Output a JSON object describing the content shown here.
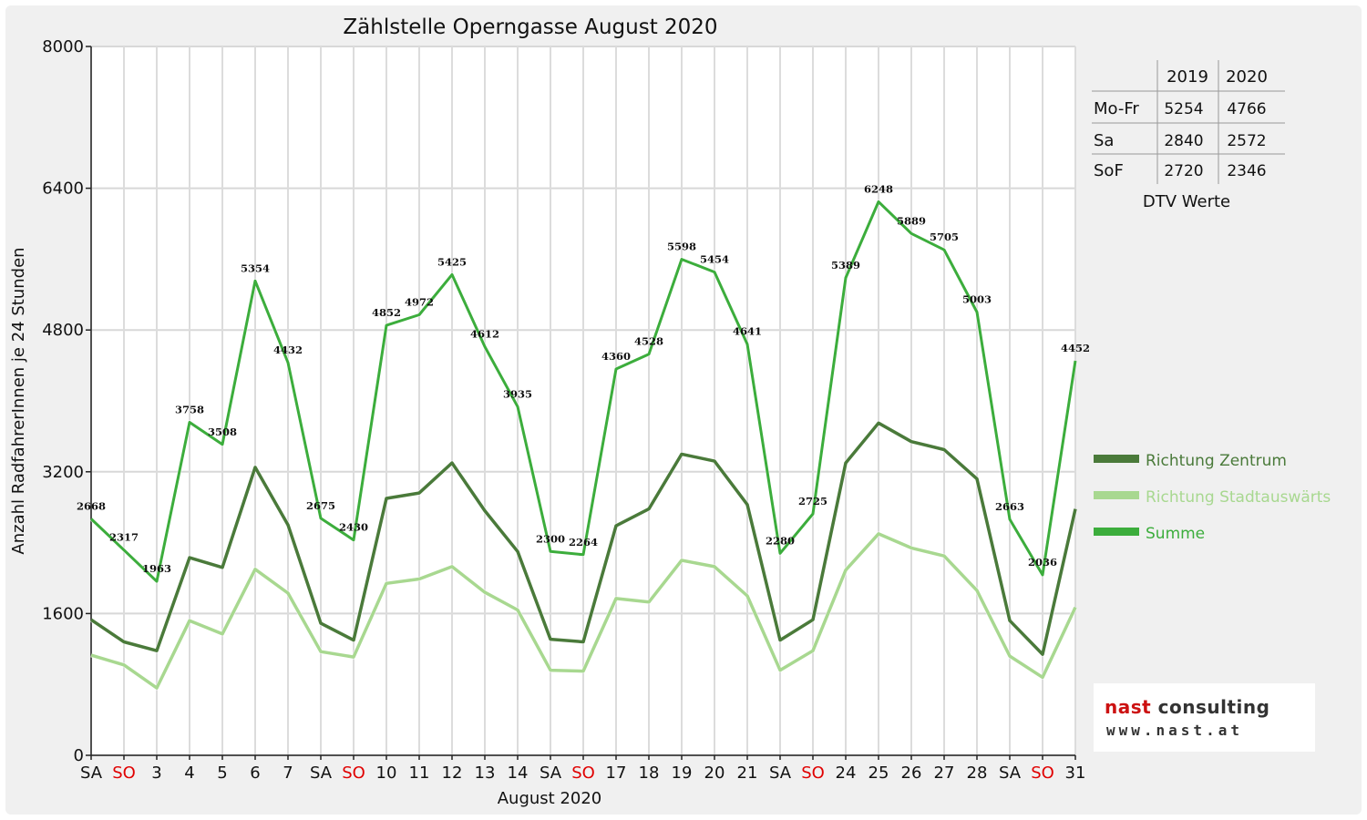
{
  "chart_data": {
    "type": "line",
    "title": "Zählstelle Operngasse August 2020",
    "xlabel": "August 2020",
    "ylabel": "Anzahl RadfahrerInnen je 24 Stunden",
    "ylim": [
      0,
      8000
    ],
    "yticks": [
      0,
      1600,
      3200,
      4800,
      6400,
      8000
    ],
    "grid": true,
    "legend_position": "right",
    "categories": [
      "SA",
      "SO",
      "3",
      "4",
      "5",
      "6",
      "7",
      "SA",
      "SO",
      "10",
      "11",
      "12",
      "13",
      "14",
      "SA",
      "SO",
      "17",
      "18",
      "19",
      "20",
      "21",
      "SA",
      "SO",
      "24",
      "25",
      "26",
      "27",
      "28",
      "SA",
      "SO",
      "31"
    ],
    "weekend_color": "#e00000",
    "series": [
      {
        "name": "Richtung Zentrum",
        "color": "#4a7a3a",
        "values": [
          1530,
          1280,
          1180,
          2230,
          2120,
          3250,
          2600,
          1490,
          1300,
          2900,
          2960,
          3300,
          2760,
          2300,
          1310,
          1280,
          2590,
          2780,
          3400,
          3320,
          2830,
          1300,
          1530,
          3300,
          3750,
          3540,
          3450,
          3120,
          1520,
          1140,
          2780
        ]
      },
      {
        "name": "Richtung Stadtauswärts",
        "color": "#a8d890",
        "values": [
          1130,
          1020,
          760,
          1520,
          1370,
          2100,
          1830,
          1170,
          1110,
          1940,
          1990,
          2130,
          1840,
          1640,
          960,
          950,
          1770,
          1730,
          2200,
          2130,
          1800,
          960,
          1180,
          2090,
          2500,
          2340,
          2250,
          1860,
          1120,
          880,
          1670
        ]
      },
      {
        "name": "Summe",
        "color": "#3cad3c",
        "values": [
          2668,
          2317,
          1963,
          3758,
          3508,
          5354,
          4432,
          2675,
          2430,
          4852,
          4972,
          5425,
          4612,
          3935,
          2300,
          2264,
          4360,
          4528,
          5598,
          5454,
          4641,
          2280,
          2725,
          5389,
          6248,
          5889,
          5705,
          5003,
          2663,
          2036,
          4452
        ]
      }
    ]
  },
  "dtv_table": {
    "title": "DTV Werte",
    "columns": [
      "2019",
      "2020"
    ],
    "rows": [
      {
        "label": "Mo-Fr",
        "v2019": "5254",
        "v2020": "4766"
      },
      {
        "label": "Sa",
        "v2019": "2840",
        "v2020": "2572"
      },
      {
        "label": "SoF",
        "v2019": "2720",
        "v2020": "2346"
      }
    ]
  },
  "logo": {
    "line1a": "nast",
    "line1b": " consulting",
    "line2": "www.nast.at"
  }
}
